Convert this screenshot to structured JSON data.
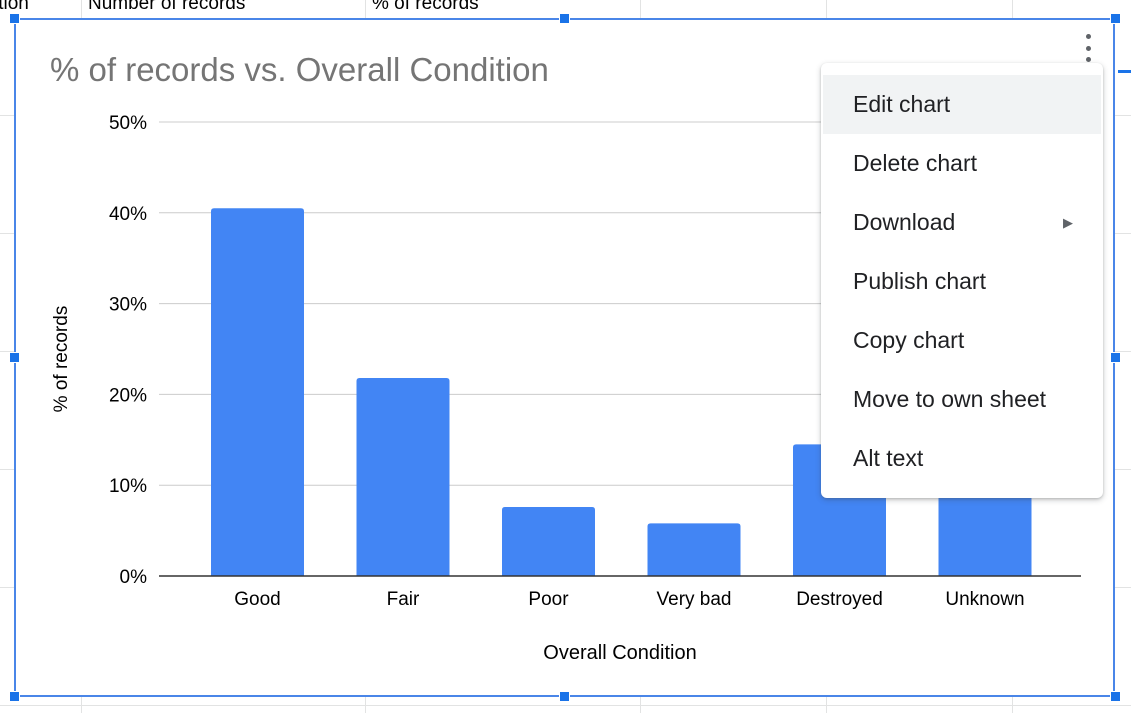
{
  "sheet": {
    "header_cells": [
      "ition",
      "Number of records",
      "% of records"
    ]
  },
  "chart": {
    "title": "% of records vs. Overall Condition",
    "menu_icon": "more-vert-icon"
  },
  "chart_data": {
    "type": "bar",
    "title": "% of records vs. Overall Condition",
    "xlabel": "Overall Condition",
    "ylabel": "% of records",
    "categories": [
      "Good",
      "Fair",
      "Poor",
      "Very bad",
      "Destroyed",
      "Unknown"
    ],
    "values": [
      40.5,
      21.8,
      7.6,
      5.8,
      14.5,
      9.8
    ],
    "ylim": [
      0,
      50
    ],
    "yticks": [
      "0%",
      "10%",
      "20%",
      "30%",
      "40%",
      "50%"
    ],
    "grid": true,
    "legend": "none",
    "bar_color": "#4285f4"
  },
  "context_menu": {
    "items": [
      {
        "label": "Edit chart",
        "highlighted": true
      },
      {
        "label": "Delete chart"
      },
      {
        "label": "Download",
        "submenu": true
      },
      {
        "label": "Publish chart"
      },
      {
        "label": "Copy chart"
      },
      {
        "label": "Move to own sheet"
      },
      {
        "label": "Alt text"
      }
    ]
  },
  "colors": {
    "accent": "#1a73e8",
    "bar": "#4285f4",
    "title": "#757575"
  }
}
